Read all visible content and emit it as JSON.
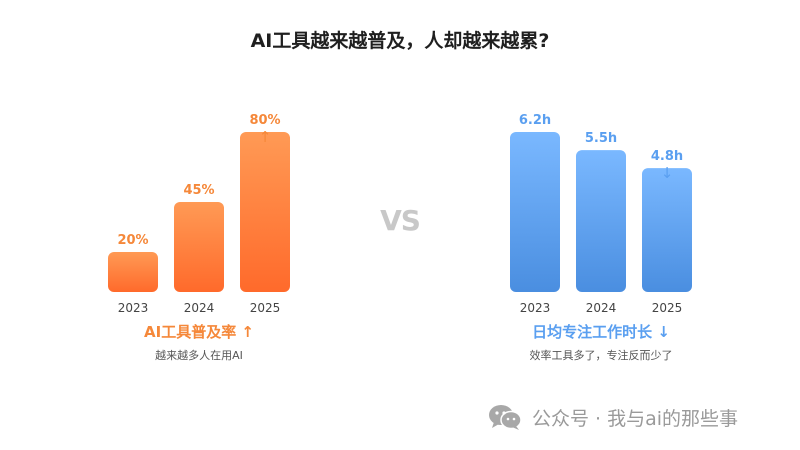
{
  "title": "AI工具越来越普及，人却越来越累?",
  "vs_label": "VS",
  "chart_data": [
    {
      "type": "bar",
      "categories": [
        "2023",
        "2024",
        "2025"
      ],
      "values": [
        20,
        45,
        80
      ],
      "value_labels": [
        "20%",
        "45%",
        "80%"
      ],
      "unit": "%",
      "caption": "AI工具普及率 ↑",
      "subcaption": "越来越多人在用AI",
      "trend_marker": "↑",
      "trend_index": 2,
      "color_top": "#ff9a55",
      "color_bottom": "#ff6a2b",
      "label_color": "#f5883a"
    },
    {
      "type": "bar",
      "categories": [
        "2023",
        "2024",
        "2025"
      ],
      "values": [
        6.2,
        5.5,
        4.8
      ],
      "value_labels": [
        "6.2h",
        "5.5h",
        "4.8h"
      ],
      "unit": "h",
      "caption": "日均专注工作时长 ↓",
      "subcaption": "效率工具多了，专注反而少了",
      "trend_marker": "↓",
      "trend_index": 2,
      "color_top": "#7ab8ff",
      "color_bottom": "#4a8ee0",
      "label_color": "#5a9ff0"
    }
  ],
  "watermark": {
    "icon": "wechat-icon",
    "text": "公众号 · 我与ai的那些事"
  }
}
